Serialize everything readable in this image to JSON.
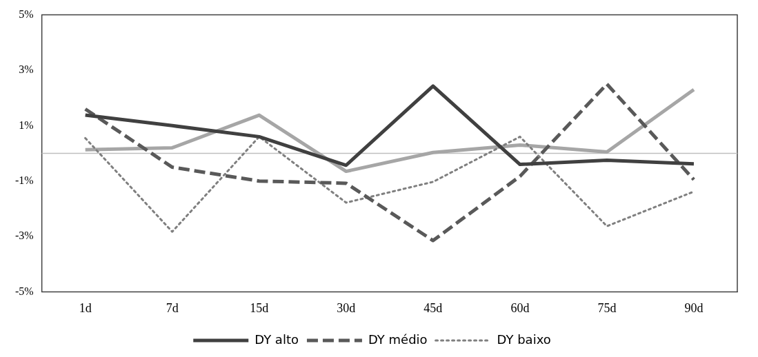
{
  "chart_data": {
    "type": "line",
    "categories": [
      "1d",
      "7d",
      "15d",
      "30d",
      "45d",
      "60d",
      "75d",
      "90d"
    ],
    "series": [
      {
        "name": "DY alto",
        "color": "#404040",
        "line_style": "solid",
        "values": [
          1.38,
          1.0,
          0.6,
          -0.43,
          2.43,
          -0.4,
          -0.25,
          -0.38
        ]
      },
      {
        "name": "DY médio",
        "color": "#595959",
        "line_style": "dashed",
        "values": [
          1.6,
          -0.5,
          -1.0,
          -1.08,
          -3.15,
          -0.83,
          2.5,
          -0.95
        ]
      },
      {
        "name": "DY baixo",
        "color": "#7f7f7f",
        "line_style": "dotted",
        "values": [
          0.55,
          -2.83,
          0.6,
          -1.78,
          -1.03,
          0.6,
          -2.63,
          -1.38
        ]
      },
      {
        "color": "#a6a6a6",
        "line_style": "solid",
        "values": [
          0.13,
          0.2,
          1.38,
          -0.65,
          0.03,
          0.3,
          0.05,
          2.3
        ]
      }
    ],
    "ylim": [
      -5,
      5
    ],
    "yticks": [
      {
        "value": -5,
        "label": "-5%"
      },
      {
        "value": -3,
        "label": "-3%"
      },
      {
        "value": -1,
        "label": "-1%"
      },
      {
        "value": 1,
        "label": "1%"
      },
      {
        "value": 3,
        "label": "3%"
      },
      {
        "value": 5,
        "label": "5%"
      }
    ],
    "ref_lines": [
      {
        "axis": "y",
        "value": 0,
        "color": "#bfbfbf"
      }
    ],
    "grid": false,
    "legend": "bottom",
    "marker": "none"
  }
}
